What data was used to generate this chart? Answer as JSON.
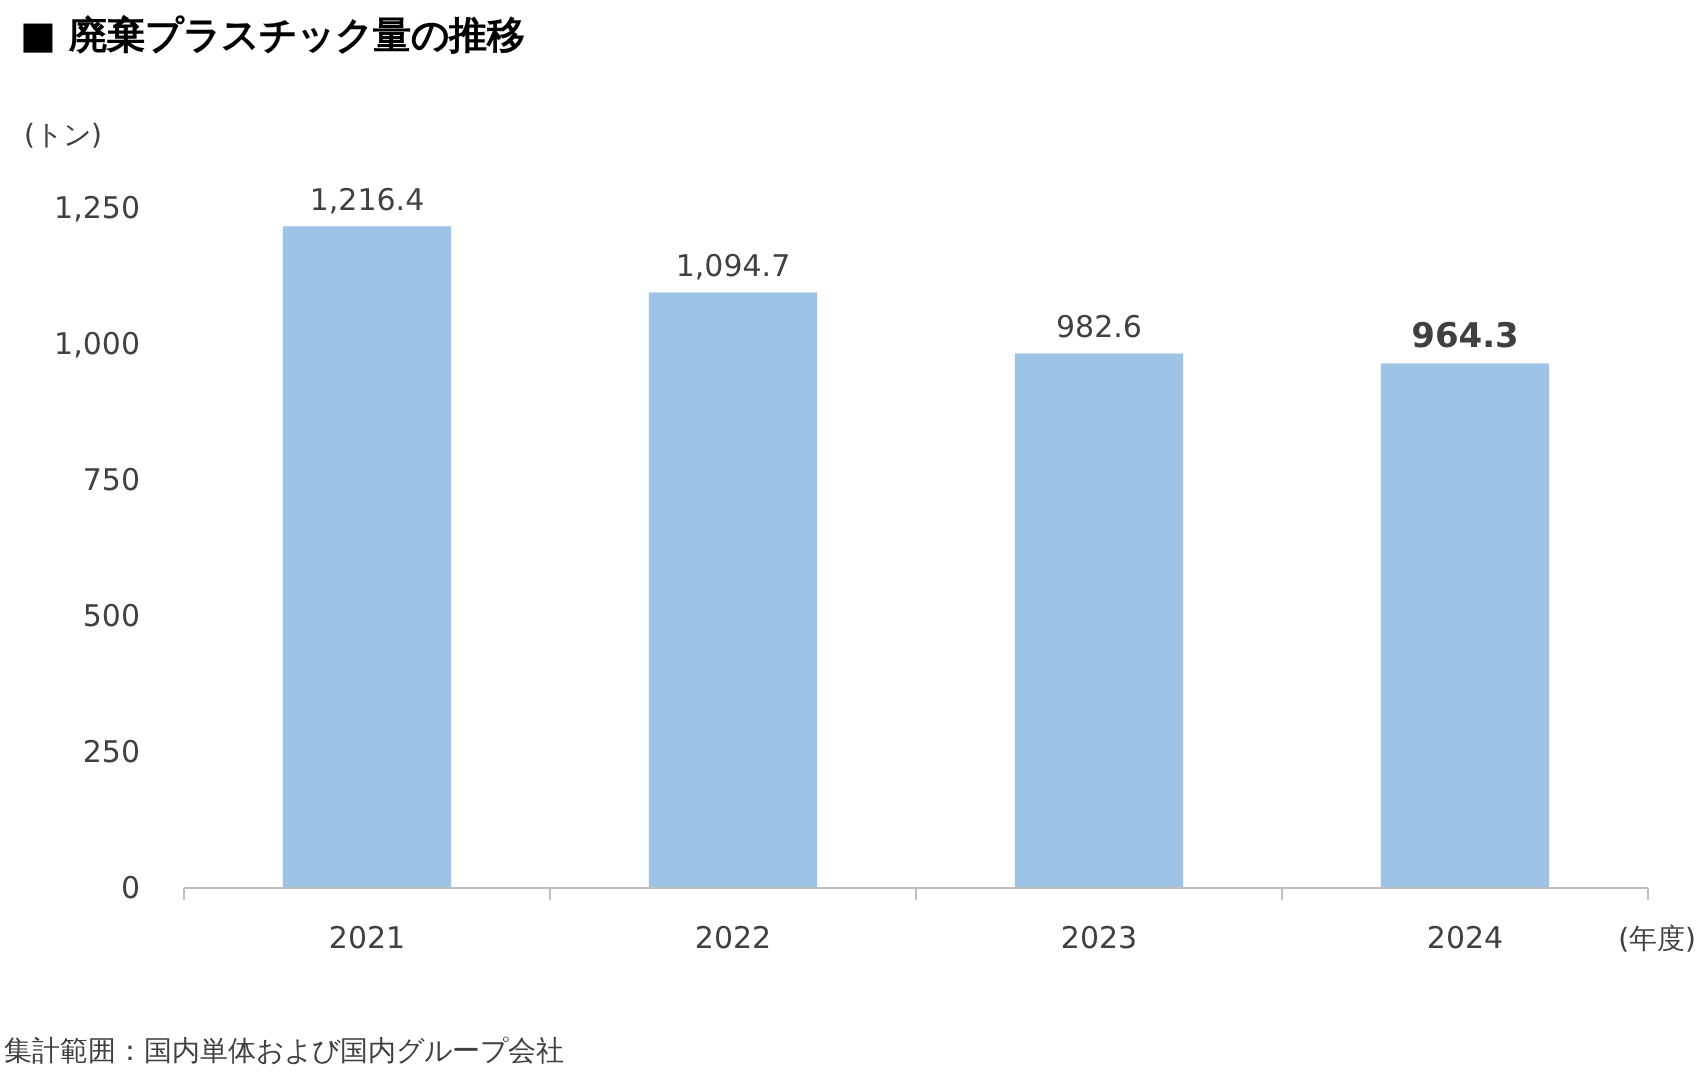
{
  "chart_data": {
    "type": "bar",
    "title": "■ 廃棄プラスチック量の推移",
    "ylabel": "(トン)",
    "xlabel": "(年度)",
    "categories": [
      "2021",
      "2022",
      "2023",
      "2024"
    ],
    "values": [
      1216.4,
      1094.7,
      982.6,
      964.3
    ],
    "value_labels": [
      "1,216.4",
      "1,094.7",
      "982.6",
      "964.3"
    ],
    "color": "#9dc3e6",
    "ylim": [
      0,
      1250
    ],
    "yticks": [
      {
        "value": 0,
        "label": "0"
      },
      {
        "value": 250,
        "label": "250"
      },
      {
        "value": 500,
        "label": "500"
      },
      {
        "value": 750,
        "label": "750"
      },
      {
        "value": 1000,
        "label": "1,000"
      },
      {
        "value": 1250,
        "label": "1,250"
      }
    ],
    "grid": false,
    "annotations": [
      "集計範囲：国内単体および国内グループ会社"
    ]
  }
}
